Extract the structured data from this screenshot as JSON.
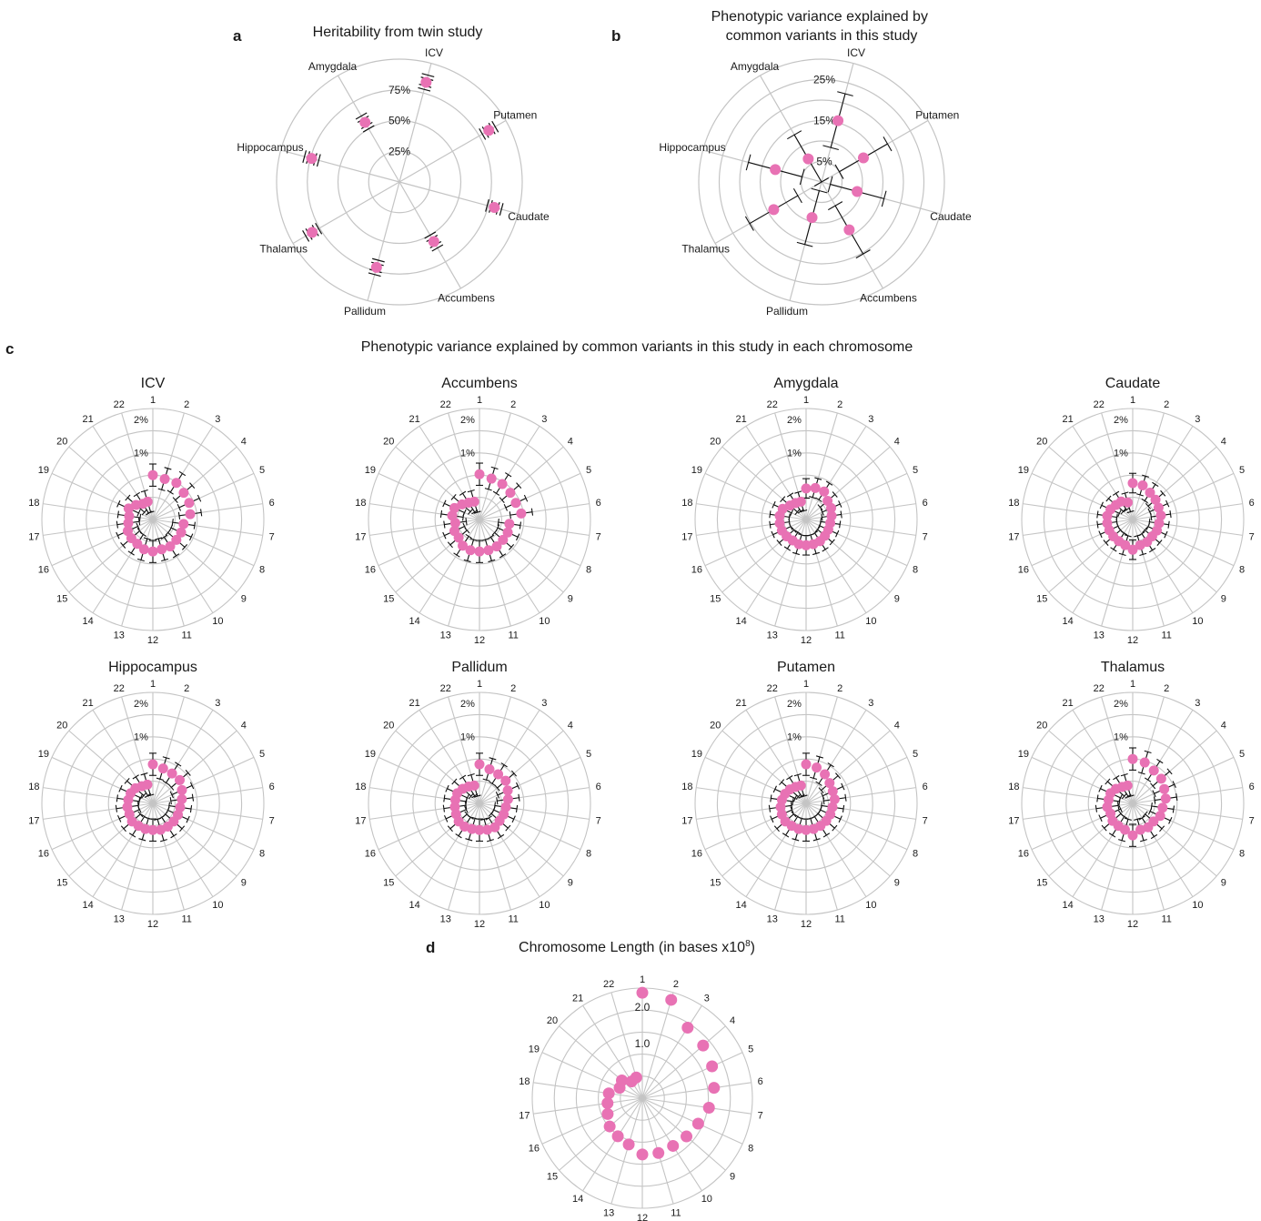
{
  "colors": {
    "point": "#e872b4",
    "grid": "#c4c4c4",
    "errorbar": "#111111",
    "text": "#1a1a1a"
  },
  "chart_data": [
    {
      "id": "a",
      "panel_label": "a",
      "type": "polar-scatter",
      "title": "Heritability from twin study",
      "categories": [
        "ICV",
        "Putamen",
        "Caudate",
        "Accumbens",
        "Pallidum",
        "Thalamus",
        "Hippocampus",
        "Amygdala"
      ],
      "ring_labels": [
        "25%",
        "50%",
        "75%"
      ],
      "rlim": [
        0,
        1
      ],
      "grid": true,
      "series": [
        {
          "values": [
            0.84,
            0.84,
            0.8,
            0.56,
            0.72,
            0.82,
            0.74,
            0.56
          ],
          "errors_inner": [
            0.03,
            0.03,
            0.03,
            0.03,
            0.03,
            0.03,
            0.03,
            0.03
          ],
          "errors_outer": [
            0.06,
            0.06,
            0.06,
            0.06,
            0.06,
            0.06,
            0.06,
            0.06
          ]
        }
      ]
    },
    {
      "id": "b",
      "panel_label": "b",
      "type": "polar-scatter",
      "title": "Phenotypic variance explained by common variants in this study",
      "categories": [
        "ICV",
        "Putamen",
        "Caudate",
        "Accumbens",
        "Pallidum",
        "Thalamus",
        "Hippocampus",
        "Amygdala"
      ],
      "ring_labels": [
        "5%",
        "15%",
        "25%"
      ],
      "rlim": [
        0,
        0.3
      ],
      "grid": true,
      "series": [
        {
          "values": [
            0.155,
            0.118,
            0.09,
            0.135,
            0.09,
            0.135,
            0.117,
            0.065
          ],
          "errors": [
            0.068,
            0.068,
            0.068,
            0.068,
            0.068,
            0.068,
            0.068,
            0.068
          ]
        }
      ]
    },
    {
      "id": "c",
      "panel_label": "c",
      "type": "polar-scatter",
      "title": "Phenotypic variance explained by common variants in this study in each chromosome",
      "categories": [
        "1",
        "2",
        "3",
        "4",
        "5",
        "6",
        "7",
        "8",
        "9",
        "10",
        "11",
        "12",
        "13",
        "14",
        "15",
        "16",
        "17",
        "18",
        "19",
        "20",
        "21",
        "22"
      ],
      "ring_labels": [
        "1%",
        "2%"
      ],
      "rlim": [
        0,
        2.5
      ],
      "grid": true,
      "subplots": [
        {
          "title": "ICV",
          "values": [
            1.0,
            0.95,
            0.98,
            0.92,
            0.9,
            0.85,
            0.7,
            0.7,
            0.7,
            0.72,
            0.7,
            0.72,
            0.7,
            0.65,
            0.64,
            0.62,
            0.56,
            0.54,
            0.6,
            0.5,
            0.42,
            0.42
          ],
          "errors": [
            0.25,
            0.25,
            0.25,
            0.25,
            0.25,
            0.25,
            0.25,
            0.25,
            0.25,
            0.25,
            0.25,
            0.25,
            0.25,
            0.25,
            0.25,
            0.25,
            0.25,
            0.25,
            0.25,
            0.25,
            0.25,
            0.25
          ]
        },
        {
          "title": "Accumbens",
          "values": [
            1.02,
            0.96,
            0.95,
            0.92,
            0.9,
            0.95,
            0.68,
            0.7,
            0.7,
            0.72,
            0.72,
            0.72,
            0.72,
            0.7,
            0.62,
            0.62,
            0.55,
            0.62,
            0.62,
            0.52,
            0.45,
            0.42
          ],
          "errors": [
            0.25,
            0.25,
            0.25,
            0.25,
            0.25,
            0.25,
            0.25,
            0.25,
            0.25,
            0.25,
            0.25,
            0.25,
            0.25,
            0.25,
            0.25,
            0.25,
            0.25,
            0.25,
            0.25,
            0.25,
            0.25,
            0.25
          ]
        },
        {
          "title": "Amygdala",
          "values": [
            0.7,
            0.74,
            0.75,
            0.64,
            0.62,
            0.58,
            0.55,
            0.55,
            0.56,
            0.58,
            0.58,
            0.58,
            0.58,
            0.56,
            0.58,
            0.6,
            0.6,
            0.6,
            0.58,
            0.48,
            0.44,
            0.42
          ],
          "errors": [
            0.22,
            0.22,
            0.22,
            0.22,
            0.22,
            0.22,
            0.22,
            0.22,
            0.22,
            0.22,
            0.22,
            0.22,
            0.22,
            0.22,
            0.22,
            0.22,
            0.22,
            0.22,
            0.22,
            0.22,
            0.22,
            0.22
          ]
        },
        {
          "title": "Caudate",
          "values": [
            0.82,
            0.8,
            0.72,
            0.68,
            0.64,
            0.64,
            0.6,
            0.6,
            0.58,
            0.6,
            0.6,
            0.68,
            0.6,
            0.58,
            0.58,
            0.58,
            0.58,
            0.58,
            0.55,
            0.5,
            0.48,
            0.4
          ],
          "errors": [
            0.22,
            0.22,
            0.22,
            0.22,
            0.22,
            0.22,
            0.22,
            0.22,
            0.22,
            0.22,
            0.22,
            0.22,
            0.22,
            0.22,
            0.22,
            0.22,
            0.22,
            0.22,
            0.22,
            0.22,
            0.22,
            0.22
          ]
        },
        {
          "title": "Hippocampus",
          "values": [
            0.88,
            0.82,
            0.8,
            0.8,
            0.72,
            0.66,
            0.62,
            0.62,
            0.62,
            0.62,
            0.62,
            0.6,
            0.6,
            0.6,
            0.62,
            0.58,
            0.58,
            0.56,
            0.55,
            0.52,
            0.46,
            0.44
          ],
          "errors": [
            0.25,
            0.25,
            0.25,
            0.25,
            0.25,
            0.25,
            0.25,
            0.25,
            0.25,
            0.25,
            0.25,
            0.25,
            0.25,
            0.25,
            0.25,
            0.25,
            0.25,
            0.25,
            0.25,
            0.25,
            0.25,
            0.25
          ]
        },
        {
          "title": "Pallidum",
          "values": [
            0.88,
            0.8,
            0.78,
            0.78,
            0.7,
            0.65,
            0.6,
            0.6,
            0.6,
            0.64,
            0.62,
            0.6,
            0.6,
            0.62,
            0.62,
            0.58,
            0.56,
            0.55,
            0.55,
            0.5,
            0.45,
            0.42
          ],
          "errors": [
            0.25,
            0.25,
            0.25,
            0.25,
            0.25,
            0.25,
            0.25,
            0.25,
            0.25,
            0.25,
            0.25,
            0.25,
            0.25,
            0.25,
            0.25,
            0.25,
            0.25,
            0.25,
            0.25,
            0.25,
            0.25,
            0.25
          ]
        },
        {
          "title": "Putamen",
          "values": [
            0.88,
            0.84,
            0.78,
            0.7,
            0.66,
            0.65,
            0.6,
            0.6,
            0.6,
            0.6,
            0.6,
            0.6,
            0.6,
            0.6,
            0.62,
            0.6,
            0.58,
            0.55,
            0.52,
            0.48,
            0.44,
            0.42
          ],
          "errors": [
            0.25,
            0.25,
            0.25,
            0.25,
            0.25,
            0.25,
            0.25,
            0.25,
            0.25,
            0.25,
            0.25,
            0.25,
            0.25,
            0.25,
            0.25,
            0.25,
            0.25,
            0.25,
            0.25,
            0.25,
            0.25,
            0.25
          ]
        },
        {
          "title": "Thalamus",
          "values": [
            1.0,
            0.96,
            0.88,
            0.85,
            0.78,
            0.75,
            0.68,
            0.68,
            0.62,
            0.64,
            0.62,
            0.72,
            0.62,
            0.6,
            0.6,
            0.55,
            0.58,
            0.55,
            0.55,
            0.5,
            0.44,
            0.42
          ],
          "errors": [
            0.25,
            0.25,
            0.25,
            0.25,
            0.25,
            0.25,
            0.25,
            0.25,
            0.25,
            0.25,
            0.25,
            0.25,
            0.25,
            0.25,
            0.25,
            0.25,
            0.25,
            0.25,
            0.25,
            0.25,
            0.25,
            0.25
          ]
        }
      ]
    },
    {
      "id": "d",
      "panel_label": "d",
      "type": "polar-scatter",
      "title": "Chromosome Length (in bases x10",
      "title_superscript": "8",
      "title_close": ")",
      "categories": [
        "1",
        "2",
        "3",
        "4",
        "5",
        "6",
        "7",
        "8",
        "9",
        "10",
        "11",
        "12",
        "13",
        "14",
        "15",
        "16",
        "17",
        "18",
        "19",
        "20",
        "21",
        "22"
      ],
      "ring_labels": [
        "1.0",
        "2.0"
      ],
      "rlim": [
        0,
        2.6
      ],
      "grid": true,
      "series": [
        {
          "values": [
            2.49,
            2.42,
            1.98,
            1.9,
            1.81,
            1.71,
            1.59,
            1.45,
            1.38,
            1.34,
            1.35,
            1.33,
            1.14,
            1.07,
            1.02,
            0.9,
            0.83,
            0.8,
            0.59,
            0.64,
            0.47,
            0.51
          ]
        }
      ]
    }
  ]
}
